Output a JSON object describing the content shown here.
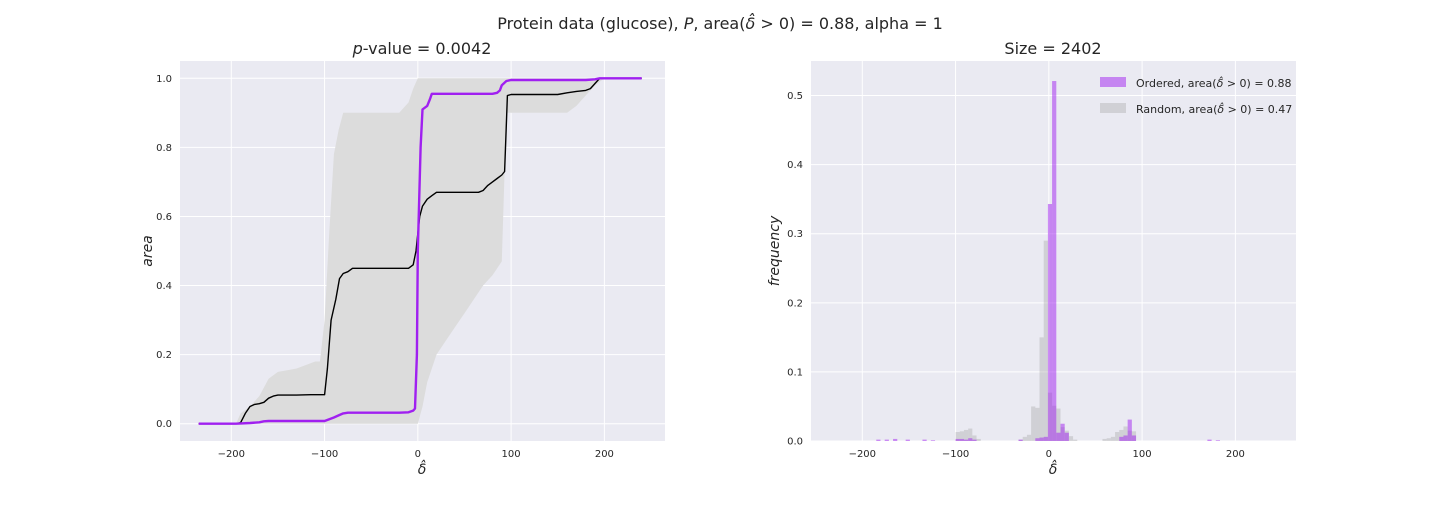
{
  "figure": {
    "suptitle": "Protein data (glucose), P, area(δ̂ > 0) = 0.88, alpha = 1",
    "suptitle_parts": {
      "pre": "Protein data (glucose), ",
      "p": "P",
      "mid": ", area(",
      "delta": "δ̂",
      "post": " > 0) = 0.88, alpha = 1"
    }
  },
  "chart_data": [
    {
      "type": "line",
      "title": "p-value = 0.0042",
      "title_parts": {
        "p": "p",
        "rest": "-value = 0.0042"
      },
      "xlabel": "δ̂",
      "ylabel": "area",
      "xlim": [
        -255,
        265
      ],
      "ylim": [
        -0.05,
        1.05
      ],
      "xticks": [
        -200,
        -100,
        0,
        100,
        200
      ],
      "xtick_labels": [
        "−200",
        "−100",
        "0",
        "100",
        "200"
      ],
      "yticks": [
        0.0,
        0.2,
        0.4,
        0.6,
        0.8,
        1.0
      ],
      "ytick_labels": [
        "0.0",
        "0.2",
        "0.4",
        "0.6",
        "0.8",
        "1.0"
      ],
      "grid": true,
      "colors": {
        "background": "#eaeaf2",
        "grid": "#ffffff",
        "ordered": "#a020f0",
        "random": "#000000",
        "band": "#dcdcdc"
      },
      "band": {
        "x": [
          -235,
          -195,
          -190,
          -180,
          -170,
          -160,
          -150,
          -140,
          -130,
          -120,
          -110,
          -105,
          -100,
          -95,
          -90,
          -85,
          -80,
          -70,
          -60,
          -50,
          -40,
          -30,
          -20,
          -10,
          -5,
          0,
          5,
          10,
          20,
          30,
          40,
          50,
          60,
          70,
          80,
          90,
          95,
          100,
          110,
          120,
          130,
          140,
          150,
          160,
          170,
          180,
          190,
          200,
          240
        ],
        "low": [
          0,
          0,
          0,
          0,
          0,
          0,
          0,
          0,
          0,
          0,
          0,
          0,
          0,
          0,
          0,
          0,
          0,
          0,
          0,
          0,
          0,
          0,
          0,
          0,
          0,
          0,
          0.05,
          0.12,
          0.2,
          0.24,
          0.28,
          0.32,
          0.36,
          0.4,
          0.43,
          0.47,
          0.9,
          0.9,
          0.9,
          0.9,
          0.9,
          0.9,
          0.9,
          0.9,
          0.92,
          0.95,
          0.98,
          1.0,
          1.0
        ],
        "high": [
          0,
          0,
          0.03,
          0.05,
          0.08,
          0.13,
          0.15,
          0.155,
          0.16,
          0.17,
          0.18,
          0.18,
          0.3,
          0.55,
          0.78,
          0.85,
          0.9,
          0.9,
          0.9,
          0.9,
          0.9,
          0.9,
          0.9,
          0.93,
          0.97,
          1.0,
          1.0,
          1.0,
          1.0,
          1.0,
          1.0,
          1.0,
          1.0,
          1.0,
          1.0,
          1.0,
          1.0,
          1.0,
          1.0,
          1.0,
          1.0,
          1.0,
          1.0,
          1.0,
          1.0,
          1.0,
          1.0,
          1.0,
          1.0
        ]
      },
      "series": [
        {
          "name": "Random",
          "x": [
            -235,
            -195,
            -190,
            -185,
            -180,
            -175,
            -170,
            -165,
            -160,
            -155,
            -150,
            -130,
            -115,
            -100,
            -97,
            -93,
            -88,
            -84,
            -80,
            -75,
            -70,
            -40,
            -20,
            -10,
            -5,
            -2,
            0,
            2,
            5,
            10,
            15,
            20,
            40,
            60,
            65,
            70,
            75,
            80,
            85,
            90,
            93,
            94,
            96,
            100,
            130,
            150,
            160,
            170,
            180,
            185,
            190,
            195,
            200,
            240
          ],
          "y": [
            0,
            0,
            0.003,
            0.03,
            0.05,
            0.056,
            0.058,
            0.062,
            0.074,
            0.08,
            0.083,
            0.083,
            0.084,
            0.084,
            0.16,
            0.3,
            0.36,
            0.42,
            0.435,
            0.44,
            0.45,
            0.45,
            0.45,
            0.45,
            0.46,
            0.5,
            0.55,
            0.6,
            0.63,
            0.65,
            0.66,
            0.67,
            0.67,
            0.67,
            0.67,
            0.675,
            0.69,
            0.7,
            0.71,
            0.72,
            0.73,
            0.8,
            0.95,
            0.953,
            0.953,
            0.953,
            0.958,
            0.962,
            0.965,
            0.97,
            0.985,
            1.0,
            1.0,
            1.0
          ]
        },
        {
          "name": "Ordered",
          "x": [
            -235,
            -195,
            -180,
            -170,
            -165,
            -160,
            -150,
            -100,
            -90,
            -85,
            -80,
            -75,
            -70,
            -50,
            -20,
            -10,
            -5,
            -3,
            -1,
            0,
            3,
            5,
            10,
            13,
            15,
            20,
            50,
            80,
            85,
            88,
            90,
            95,
            100,
            120,
            150,
            180,
            190,
            195,
            200,
            240
          ],
          "y": [
            0,
            0,
            0.002,
            0.004,
            0.007,
            0.008,
            0.008,
            0.008,
            0.018,
            0.024,
            0.03,
            0.032,
            0.032,
            0.032,
            0.032,
            0.033,
            0.038,
            0.044,
            0.2,
            0.5,
            0.8,
            0.91,
            0.92,
            0.94,
            0.955,
            0.955,
            0.955,
            0.955,
            0.958,
            0.965,
            0.98,
            0.992,
            0.995,
            0.995,
            0.995,
            0.995,
            0.997,
            1.0,
            1.0,
            1.0
          ]
        }
      ]
    },
    {
      "type": "bar",
      "title": "Size = 2402",
      "xlabel": "δ̂",
      "ylabel": "frequency",
      "xlim": [
        -255,
        265
      ],
      "ylim": [
        0,
        0.55
      ],
      "xticks": [
        -200,
        -100,
        0,
        100,
        200
      ],
      "xtick_labels": [
        "−200",
        "−100",
        "0",
        "100",
        "200"
      ],
      "yticks": [
        0.0,
        0.1,
        0.2,
        0.3,
        0.4,
        0.5
      ],
      "ytick_labels": [
        "0.0",
        "0.1",
        "0.2",
        "0.3",
        "0.4",
        "0.5"
      ],
      "grid": true,
      "bin_width": 4.5,
      "legend": {
        "placement": "top-right",
        "entries": [
          {
            "name": "Ordered",
            "pre": "Ordered, area(",
            "delta": "δ̂",
            "post": " > 0) = 0.88",
            "color": "#a020f0",
            "alpha": 0.5
          },
          {
            "name": "Random",
            "pre": "Random, area(",
            "delta": "δ̂",
            "post": " > 0) = 0.47",
            "color": "#a9a9a9",
            "alpha": 0.4
          }
        ]
      },
      "series": [
        {
          "name": "Random",
          "bin_left": [
            -100,
            -95.5,
            -91,
            -86.5,
            -82,
            -77.5,
            -32.5,
            -28,
            -23.5,
            -19,
            -14.5,
            -10,
            -5.5,
            -1,
            3.5,
            8,
            12.5,
            17,
            21.5,
            26,
            57.5,
            62,
            66.5,
            71,
            75.5,
            80,
            84.5,
            89
          ],
          "values": [
            0.013,
            0.014,
            0.016,
            0.018,
            0.008,
            0.003,
            0.002,
            0.006,
            0.009,
            0.05,
            0.048,
            0.15,
            0.29,
            0.07,
            0.051,
            0.047,
            0.02,
            0.015,
            0.007,
            0.002,
            0.003,
            0.004,
            0.006,
            0.013,
            0.016,
            0.021,
            0.015,
            0.014
          ]
        },
        {
          "name": "Ordered",
          "bin_left": [
            -185,
            -176,
            -167,
            -153.5,
            -135.5,
            -126.5,
            -100,
            -95.5,
            -91,
            -86.5,
            -82,
            -32.5,
            -14.5,
            -10,
            -5.5,
            -1,
            3.5,
            8,
            12.5,
            17,
            75.5,
            80,
            84.5,
            89,
            170,
            179
          ],
          "values": [
            0.002,
            0.002,
            0.003,
            0.002,
            0.002,
            0.001,
            0.003,
            0.003,
            0.002,
            0.004,
            0.002,
            0.002,
            0.004,
            0.005,
            0.006,
            0.343,
            0.521,
            0.012,
            0.025,
            0.012,
            0.006,
            0.008,
            0.031,
            0.008,
            0.002,
            0.001
          ]
        }
      ]
    }
  ]
}
